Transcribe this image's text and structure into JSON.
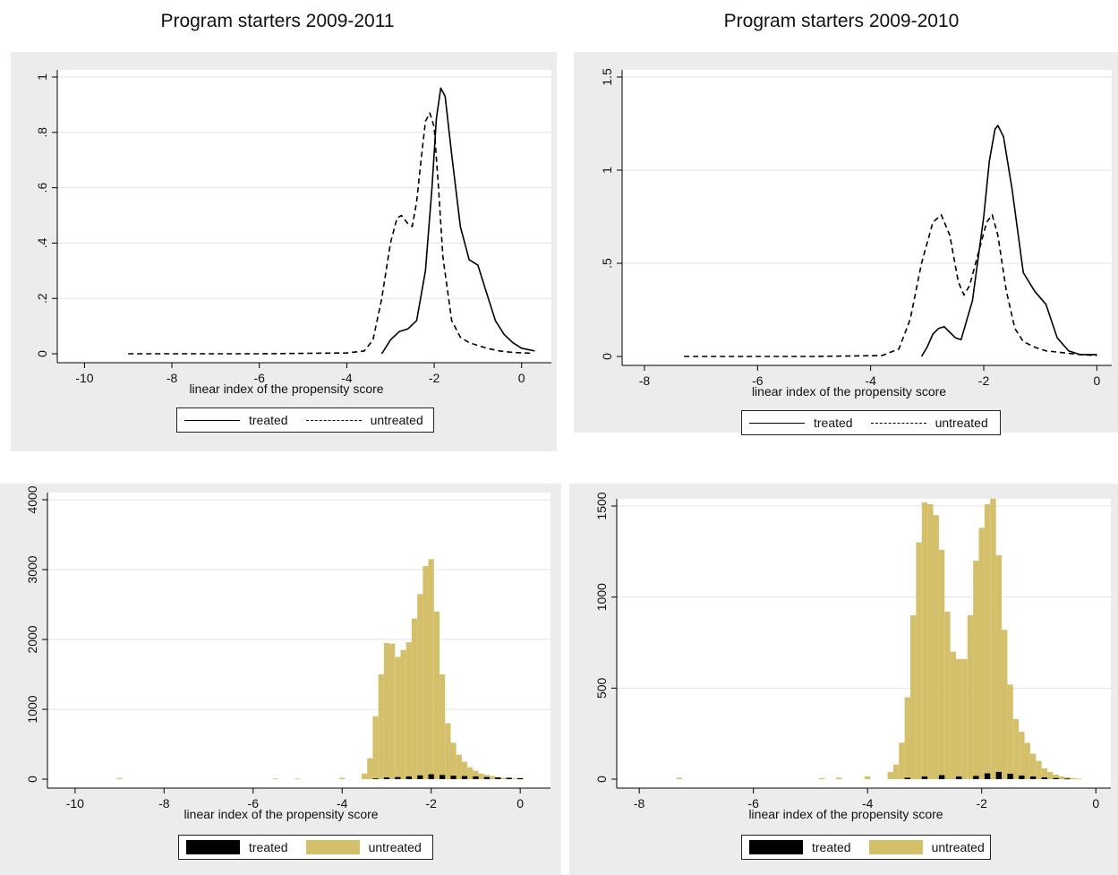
{
  "titles": {
    "left": "Program starters 2009-2011",
    "right": "Program starters 2009-2010"
  },
  "colors": {
    "treated": "#000000",
    "untreated": "#d4c06a",
    "grid": "#e3e3e3"
  },
  "chart_data": [
    {
      "id": "density-2009-2011",
      "type": "line",
      "xlabel": "linear index of the propensity score",
      "ylabel": "",
      "xlim": [
        -10.5,
        0.6
      ],
      "ylim": [
        0,
        1
      ],
      "xticks": [
        -10,
        -8,
        -6,
        -4,
        -2,
        0
      ],
      "xtick_labels": [
        "-10",
        "-8",
        "-6",
        "-4",
        "-2",
        "0"
      ],
      "yticks": [
        0,
        0.2,
        0.4,
        0.6,
        0.8,
        1
      ],
      "ytick_labels": [
        "0",
        ".2",
        ".4",
        ".6",
        ".8",
        "1"
      ],
      "grid": true,
      "legend": {
        "position": "bottom",
        "items": [
          {
            "label": "treated",
            "style": "solid"
          },
          {
            "label": "untreated",
            "style": "dashed"
          }
        ]
      },
      "series": [
        {
          "name": "treated",
          "style": "solid",
          "x": [
            -3.2,
            -3.0,
            -2.8,
            -2.6,
            -2.4,
            -2.2,
            -2.05,
            -1.95,
            -1.85,
            -1.75,
            -1.6,
            -1.4,
            -1.2,
            -1.0,
            -0.8,
            -0.6,
            -0.4,
            -0.2,
            0.0,
            0.3
          ],
          "y": [
            0.0,
            0.05,
            0.08,
            0.09,
            0.12,
            0.3,
            0.6,
            0.85,
            0.96,
            0.93,
            0.72,
            0.46,
            0.34,
            0.32,
            0.22,
            0.12,
            0.07,
            0.04,
            0.02,
            0.01
          ]
        },
        {
          "name": "untreated",
          "style": "dashed",
          "x": [
            -9.0,
            -6.0,
            -4.0,
            -3.6,
            -3.4,
            -3.2,
            -3.0,
            -2.85,
            -2.75,
            -2.6,
            -2.5,
            -2.4,
            -2.3,
            -2.2,
            -2.1,
            -2.0,
            -1.9,
            -1.8,
            -1.6,
            -1.4,
            -1.2,
            -1.0,
            -0.8,
            -0.5,
            -0.2,
            0.2
          ],
          "y": [
            0.0,
            0.0,
            0.003,
            0.01,
            0.05,
            0.2,
            0.4,
            0.49,
            0.5,
            0.47,
            0.46,
            0.55,
            0.7,
            0.84,
            0.87,
            0.82,
            0.6,
            0.35,
            0.12,
            0.06,
            0.04,
            0.03,
            0.02,
            0.01,
            0.005,
            0.002
          ]
        }
      ]
    },
    {
      "id": "density-2009-2010",
      "type": "line",
      "xlabel": "linear index of the propensity score",
      "ylabel": "",
      "xlim": [
        -8.3,
        0.2
      ],
      "ylim": [
        0,
        1.5
      ],
      "xticks": [
        -8,
        -6,
        -4,
        -2,
        0
      ],
      "xtick_labels": [
        "-8",
        "-6",
        "-4",
        "-2",
        "0"
      ],
      "yticks": [
        0,
        0.5,
        1,
        1.5
      ],
      "ytick_labels": [
        "0",
        ".5",
        "1",
        "1.5"
      ],
      "grid": true,
      "legend": {
        "position": "bottom",
        "items": [
          {
            "label": "treated",
            "style": "solid"
          },
          {
            "label": "untreated",
            "style": "dashed"
          }
        ]
      },
      "series": [
        {
          "name": "treated",
          "style": "solid",
          "x": [
            -3.1,
            -3.0,
            -2.9,
            -2.8,
            -2.7,
            -2.6,
            -2.5,
            -2.4,
            -2.2,
            -2.0,
            -1.9,
            -1.8,
            -1.75,
            -1.65,
            -1.5,
            -1.3,
            -1.1,
            -0.9,
            -0.7,
            -0.5,
            -0.3,
            0.0
          ],
          "y": [
            0.0,
            0.05,
            0.12,
            0.15,
            0.16,
            0.13,
            0.1,
            0.09,
            0.3,
            0.75,
            1.05,
            1.22,
            1.24,
            1.18,
            0.9,
            0.45,
            0.35,
            0.28,
            0.1,
            0.03,
            0.01,
            0.01
          ]
        },
        {
          "name": "untreated",
          "style": "dashed",
          "x": [
            -7.3,
            -5.0,
            -3.8,
            -3.5,
            -3.3,
            -3.1,
            -2.9,
            -2.75,
            -2.6,
            -2.45,
            -2.35,
            -2.25,
            -2.1,
            -1.95,
            -1.85,
            -1.75,
            -1.6,
            -1.45,
            -1.3,
            -1.1,
            -0.9,
            -0.6,
            -0.3,
            0.0
          ],
          "y": [
            0.0,
            0.0,
            0.005,
            0.04,
            0.2,
            0.5,
            0.72,
            0.76,
            0.65,
            0.4,
            0.33,
            0.38,
            0.55,
            0.72,
            0.76,
            0.65,
            0.35,
            0.15,
            0.08,
            0.05,
            0.03,
            0.02,
            0.01,
            0.005
          ]
        }
      ]
    },
    {
      "id": "histogram-2009-2011",
      "type": "bar",
      "xlabel": "linear index of the propensity score",
      "ylabel": "",
      "xlim": [
        -10.5,
        0.6
      ],
      "ylim": [
        0,
        4000
      ],
      "xticks": [
        -10,
        -8,
        -6,
        -4,
        -2,
        0
      ],
      "xtick_labels": [
        "-10",
        "-8",
        "-6",
        "-4",
        "-2",
        "0"
      ],
      "yticks": [
        0,
        1000,
        2000,
        3000,
        4000
      ],
      "ytick_labels": [
        "0",
        "1000",
        "2000",
        "3000",
        "4000"
      ],
      "grid": true,
      "bin_width": 0.125,
      "legend": {
        "position": "bottom",
        "items": [
          {
            "label": "treated",
            "style": "box"
          },
          {
            "label": "untreated",
            "style": "box"
          }
        ]
      },
      "series": [
        {
          "name": "untreated",
          "x": [
            -9.0,
            -5.5,
            -5.0,
            -4.0,
            -3.5,
            -3.375,
            -3.25,
            -3.125,
            -3.0,
            -2.875,
            -2.75,
            -2.625,
            -2.5,
            -2.375,
            -2.25,
            -2.125,
            -2.0,
            -1.875,
            -1.75,
            -1.625,
            -1.5,
            -1.375,
            -1.25,
            -1.125,
            -1.0,
            -0.875,
            -0.75,
            -0.625,
            -0.5,
            -0.375,
            -0.25,
            -0.125,
            0.0
          ],
          "y": [
            15,
            10,
            8,
            20,
            80,
            300,
            900,
            1500,
            1950,
            1940,
            1750,
            1850,
            1960,
            2300,
            2650,
            3050,
            3150,
            2400,
            1500,
            800,
            520,
            350,
            250,
            170,
            120,
            80,
            60,
            45,
            30,
            20,
            15,
            10,
            5
          ]
        },
        {
          "name": "treated",
          "x": [
            -3.25,
            -3.0,
            -2.75,
            -2.5,
            -2.25,
            -2.0,
            -1.75,
            -1.5,
            -1.25,
            -1.0,
            -0.75,
            -0.5,
            -0.25,
            0.0
          ],
          "y": [
            10,
            25,
            30,
            40,
            55,
            70,
            60,
            50,
            45,
            40,
            30,
            25,
            20,
            15
          ]
        }
      ]
    },
    {
      "id": "histogram-2009-2010",
      "type": "bar",
      "xlabel": "linear index of the propensity score",
      "ylabel": "",
      "xlim": [
        -8.3,
        0.2
      ],
      "ylim": [
        0,
        1500
      ],
      "xticks": [
        -8,
        -6,
        -4,
        -2,
        0
      ],
      "xtick_labels": [
        "-8",
        "-6",
        "-4",
        "-2",
        "0"
      ],
      "yticks": [
        0,
        500,
        1000,
        1500
      ],
      "ytick_labels": [
        "0",
        "500",
        "1000",
        "1500"
      ],
      "grid": true,
      "bin_width": 0.1,
      "legend": {
        "position": "bottom",
        "items": [
          {
            "label": "treated",
            "style": "box"
          },
          {
            "label": "untreated",
            "style": "box"
          }
        ]
      },
      "series": [
        {
          "name": "untreated",
          "x": [
            -7.3,
            -4.8,
            -4.5,
            -4.0,
            -3.6,
            -3.5,
            -3.4,
            -3.3,
            -3.2,
            -3.1,
            -3.0,
            -2.9,
            -2.8,
            -2.7,
            -2.6,
            -2.5,
            -2.4,
            -2.3,
            -2.2,
            -2.1,
            -2.0,
            -1.9,
            -1.8,
            -1.7,
            -1.6,
            -1.5,
            -1.4,
            -1.3,
            -1.2,
            -1.1,
            -1.0,
            -0.9,
            -0.8,
            -0.7,
            -0.6,
            -0.5,
            -0.4,
            -0.3
          ],
          "y": [
            8,
            6,
            8,
            15,
            40,
            80,
            200,
            450,
            900,
            1300,
            1520,
            1510,
            1450,
            1260,
            920,
            700,
            660,
            660,
            900,
            1200,
            1380,
            1510,
            1540,
            1230,
            820,
            520,
            330,
            260,
            200,
            140,
            100,
            60,
            40,
            25,
            15,
            10,
            6,
            3
          ]
        },
        {
          "name": "treated",
          "x": [
            -3.3,
            -3.0,
            -2.7,
            -2.4,
            -2.1,
            -1.9,
            -1.7,
            -1.5,
            -1.3,
            -1.1,
            -0.9,
            -0.7,
            -0.5
          ],
          "y": [
            8,
            15,
            22,
            15,
            18,
            32,
            40,
            30,
            20,
            15,
            10,
            6,
            3
          ]
        }
      ]
    }
  ]
}
